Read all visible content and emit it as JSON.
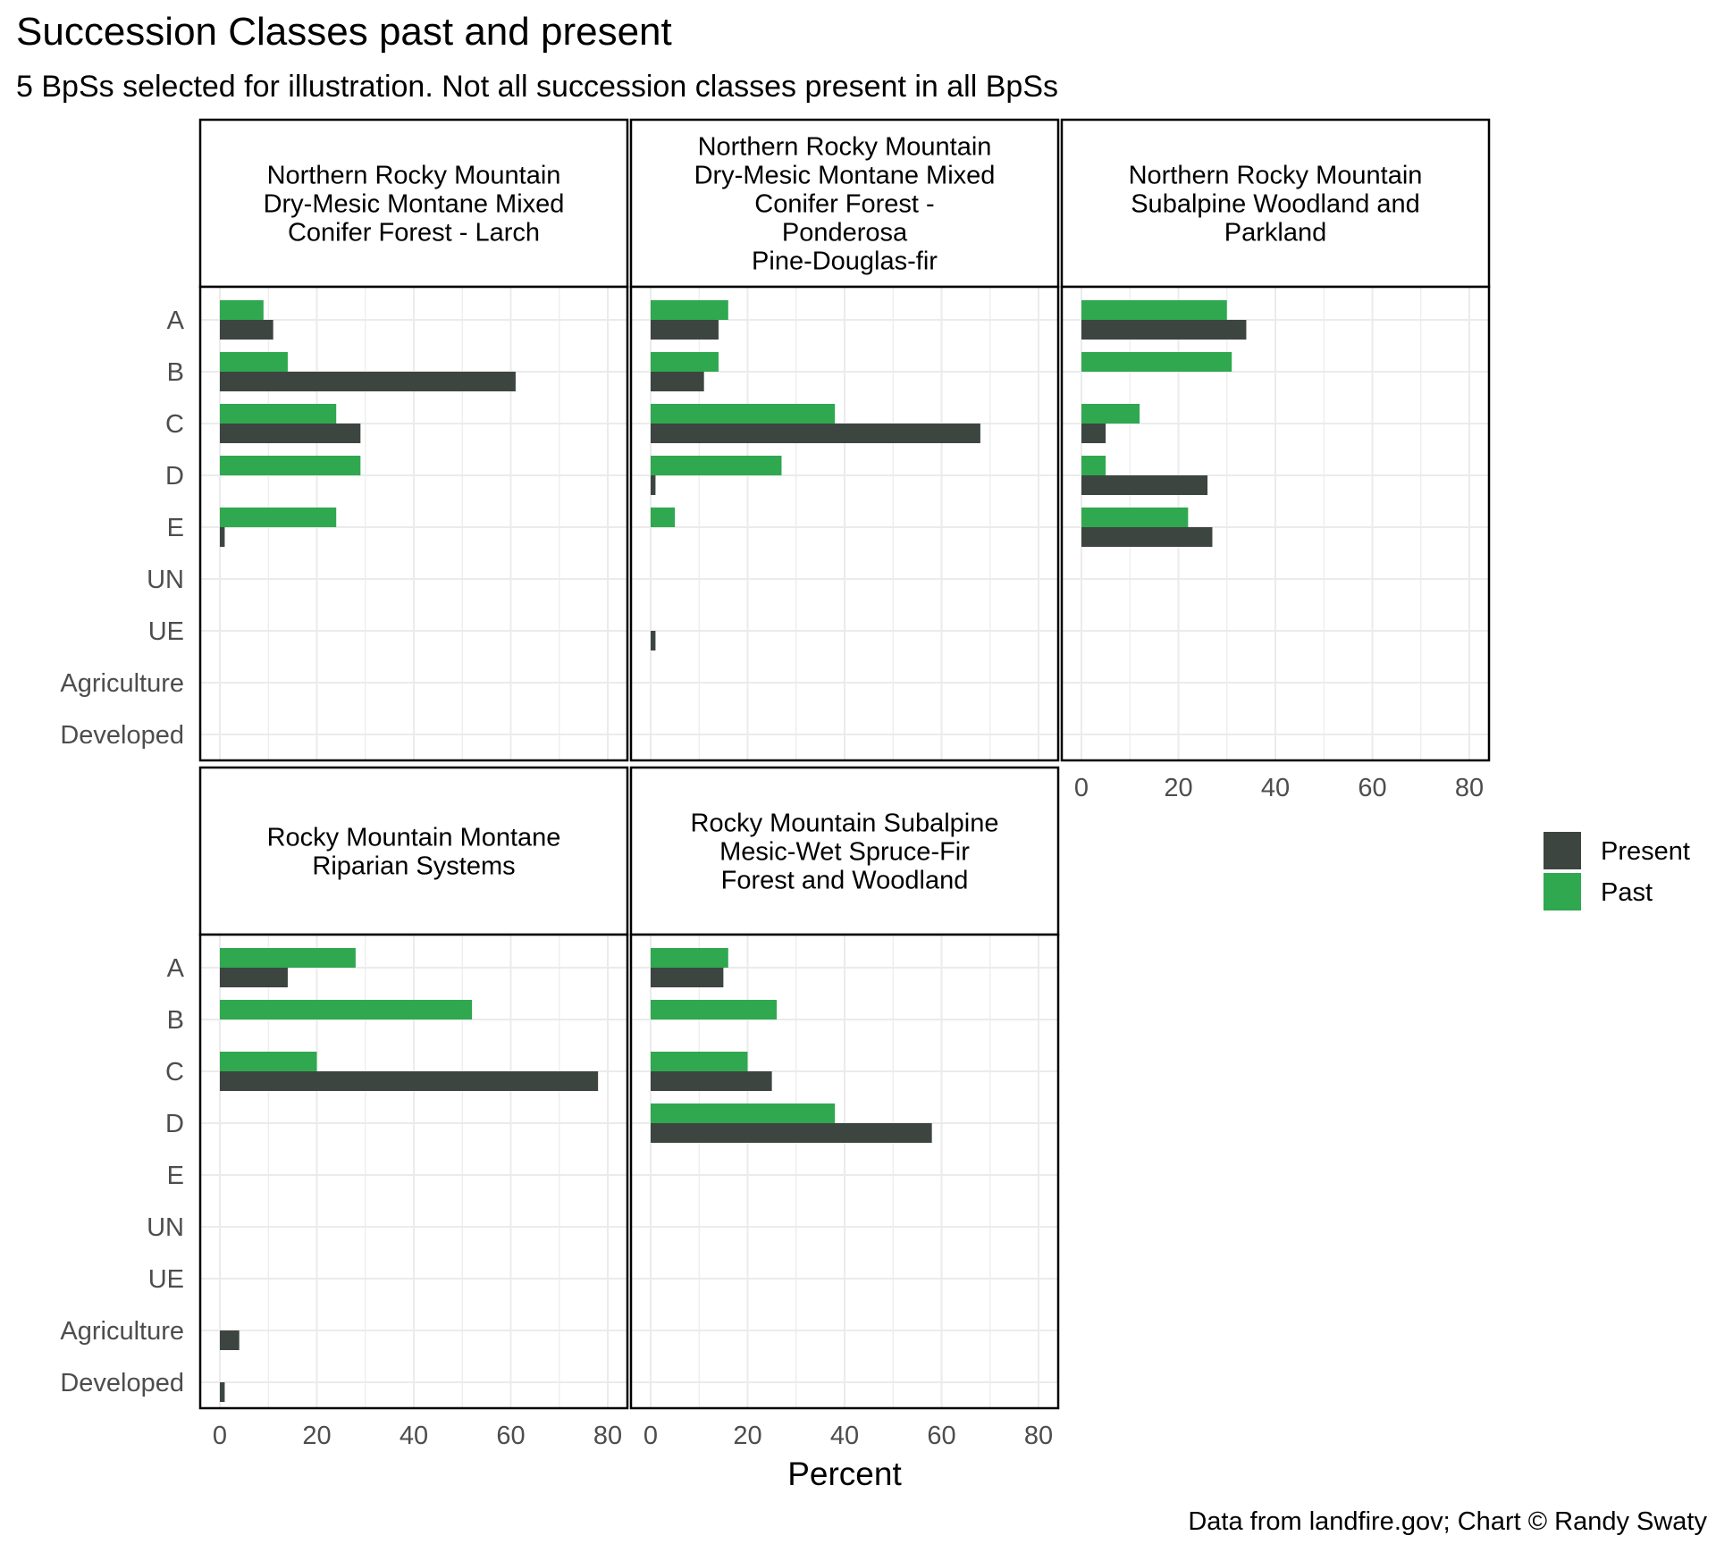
{
  "chart_data": {
    "type": "bar",
    "title": "Succession Classes past and present",
    "subtitle": "5 BpSs selected for illustration. Not all succession classes present in all BpSs",
    "xlabel": "Percent",
    "ylabel": "",
    "caption": "Data from landfire.gov; Chart © Randy Swaty",
    "xlim": [
      0,
      80
    ],
    "x_ticks": [
      "0",
      "20",
      "40",
      "60",
      "80"
    ],
    "categories": [
      "A",
      "B",
      "C",
      "D",
      "E",
      "UN",
      "UE",
      "Agriculture",
      "Developed"
    ],
    "orientation": "horizontal",
    "grid": true,
    "legend": {
      "position": "right",
      "entries": [
        {
          "name": "Present",
          "color": "#3d4540"
        },
        {
          "name": "Past",
          "color": "#2fa84f"
        }
      ]
    },
    "panels": [
      {
        "title_lines": [
          "Northern Rocky Mountain",
          "Dry-Mesic Montane Mixed",
          "Conifer Forest - Larch"
        ],
        "series": [
          {
            "name": "Present",
            "values": [
              11,
              61,
              29,
              0,
              1,
              0,
              0,
              0,
              0
            ]
          },
          {
            "name": "Past",
            "values": [
              9,
              14,
              24,
              29,
              24,
              0,
              0,
              0,
              0
            ]
          }
        ]
      },
      {
        "title_lines": [
          "Northern Rocky Mountain",
          "Dry-Mesic Montane Mixed",
          "Conifer Forest -",
          "Ponderosa",
          "Pine-Douglas-fir"
        ],
        "series": [
          {
            "name": "Present",
            "values": [
              14,
              11,
              68,
              1,
              0,
              0,
              1,
              0,
              0
            ]
          },
          {
            "name": "Past",
            "values": [
              16,
              14,
              38,
              27,
              5,
              0,
              0,
              0,
              0
            ]
          }
        ]
      },
      {
        "title_lines": [
          "Northern Rocky Mountain",
          "Subalpine Woodland and",
          "Parkland"
        ],
        "series": [
          {
            "name": "Present",
            "values": [
              34,
              0,
              5,
              26,
              27,
              0,
              0,
              0,
              0
            ]
          },
          {
            "name": "Past",
            "values": [
              30,
              31,
              12,
              5,
              22,
              0,
              0,
              0,
              0
            ]
          }
        ]
      },
      {
        "title_lines": [
          "Rocky Mountain Montane",
          "Riparian Systems"
        ],
        "series": [
          {
            "name": "Present",
            "values": [
              14,
              0,
              78,
              0,
              0,
              0,
              0,
              4,
              1
            ]
          },
          {
            "name": "Past",
            "values": [
              28,
              52,
              20,
              0,
              0,
              0,
              0,
              0,
              0
            ]
          }
        ]
      },
      {
        "title_lines": [
          "Rocky Mountain Subalpine",
          "Mesic-Wet Spruce-Fir",
          "Forest and Woodland"
        ],
        "series": [
          {
            "name": "Present",
            "values": [
              15,
              0,
              25,
              58,
              0,
              0,
              0,
              0,
              0
            ]
          },
          {
            "name": "Past",
            "values": [
              16,
              26,
              20,
              38,
              0,
              0,
              0,
              0,
              0
            ]
          }
        ]
      }
    ]
  }
}
